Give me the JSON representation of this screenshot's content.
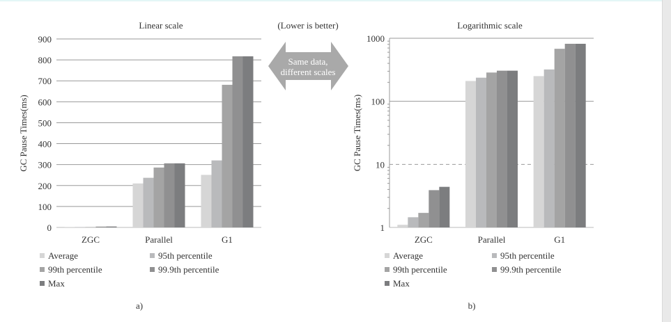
{
  "header_note": "(Lower is better)",
  "arrow_text": [
    "Same data,",
    "different scales"
  ],
  "series_colors": [
    "#d6d6d6",
    "#b9babc",
    "#a4a4a4",
    "#909091",
    "#7c7d7f"
  ],
  "chart_data": [
    {
      "type": "bar",
      "title": "Linear scale",
      "panel_label": "a)",
      "ylabel": "GC Pause Times(ms)",
      "xlabel": "",
      "yscale": "linear",
      "ylim": [
        0,
        900
      ],
      "yticks": [
        "0",
        "100",
        "200",
        "300",
        "400",
        "500",
        "600",
        "700",
        "800",
        "900"
      ],
      "grid": true,
      "legend_position": "bottom",
      "categories": [
        "ZGC",
        "Parallel",
        "G1"
      ],
      "series": [
        {
          "name": "Average",
          "values": [
            1.1,
            210,
            251
          ]
        },
        {
          "name": "95th percentile",
          "values": [
            1.45,
            237,
            320
          ]
        },
        {
          "name": "99th percentile",
          "values": [
            1.7,
            286,
            681
          ]
        },
        {
          "name": "99.9th percentile",
          "values": [
            3.9,
            306,
            817
          ]
        },
        {
          "name": "Max",
          "values": [
            4.4,
            306,
            817
          ]
        }
      ]
    },
    {
      "type": "bar",
      "title": "Logarithmic scale",
      "panel_label": "b)",
      "ylabel": "GC Pause Times(ms)",
      "xlabel": "",
      "yscale": "log",
      "ylim": [
        1,
        1000
      ],
      "yticks": [
        "1",
        "10",
        "100",
        "1000"
      ],
      "grid": true,
      "legend_position": "bottom",
      "categories": [
        "ZGC",
        "Parallel",
        "G1"
      ],
      "series": [
        {
          "name": "Average",
          "values": [
            1.1,
            210,
            251
          ]
        },
        {
          "name": "95th percentile",
          "values": [
            1.45,
            237,
            320
          ]
        },
        {
          "name": "99th percentile",
          "values": [
            1.7,
            286,
            681
          ]
        },
        {
          "name": "99.9th percentile",
          "values": [
            3.9,
            306,
            817
          ]
        },
        {
          "name": "Max",
          "values": [
            4.4,
            306,
            817
          ]
        }
      ]
    }
  ]
}
